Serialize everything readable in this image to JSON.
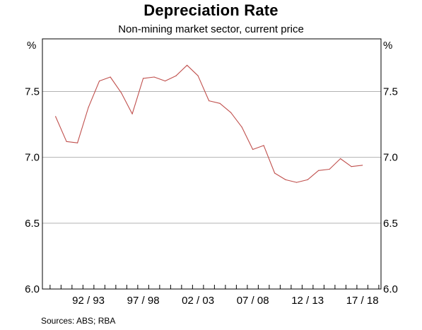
{
  "chart_data": {
    "type": "line",
    "title": "Depreciation Rate",
    "subtitle": "Non-mining market sector, current price",
    "ylabel_left": "%",
    "ylabel_right": "%",
    "ylim": [
      6.0,
      7.9
    ],
    "yticks": [
      {
        "value": 6.0,
        "label": "6.0"
      },
      {
        "value": 6.5,
        "label": "6.5"
      },
      {
        "value": 7.0,
        "label": "7.0"
      },
      {
        "value": 7.5,
        "label": "7.5"
      }
    ],
    "xlim": [
      1988.3,
      2019.2
    ],
    "xticks": [
      {
        "value": 1992.5,
        "label": "92 / 93"
      },
      {
        "value": 1997.5,
        "label": "97 / 98"
      },
      {
        "value": 2002.5,
        "label": "02 / 03"
      },
      {
        "value": 2007.5,
        "label": "07 / 08"
      },
      {
        "value": 2012.5,
        "label": "12 / 13"
      },
      {
        "value": 2017.5,
        "label": "17 / 18"
      }
    ],
    "grid": true,
    "colors": {
      "line": "#c0504d",
      "grid": "#b3b3b3",
      "axis": "#000000"
    },
    "series": [
      {
        "x": [
          1989.5,
          1990.5,
          1991.5,
          1992.5,
          1993.5,
          1994.5,
          1995.5,
          1996.5,
          1997.5,
          1998.5,
          1999.5,
          2000.5,
          2001.5,
          2002.5,
          2003.5,
          2004.5,
          2005.5,
          2006.5,
          2007.5,
          2008.5,
          2009.5,
          2010.5,
          2011.5,
          2012.5,
          2013.5,
          2014.5,
          2015.5,
          2016.5,
          2017.5
        ],
        "values": [
          7.31,
          7.12,
          7.11,
          7.38,
          7.58,
          7.61,
          7.49,
          7.33,
          7.6,
          7.61,
          7.58,
          7.62,
          7.7,
          7.62,
          7.43,
          7.41,
          7.34,
          7.23,
          7.06,
          7.09,
          6.88,
          6.83,
          6.81,
          6.83,
          6.9,
          6.91,
          6.99,
          6.93,
          6.94
        ]
      }
    ]
  },
  "source": "Sources:   ABS; RBA"
}
